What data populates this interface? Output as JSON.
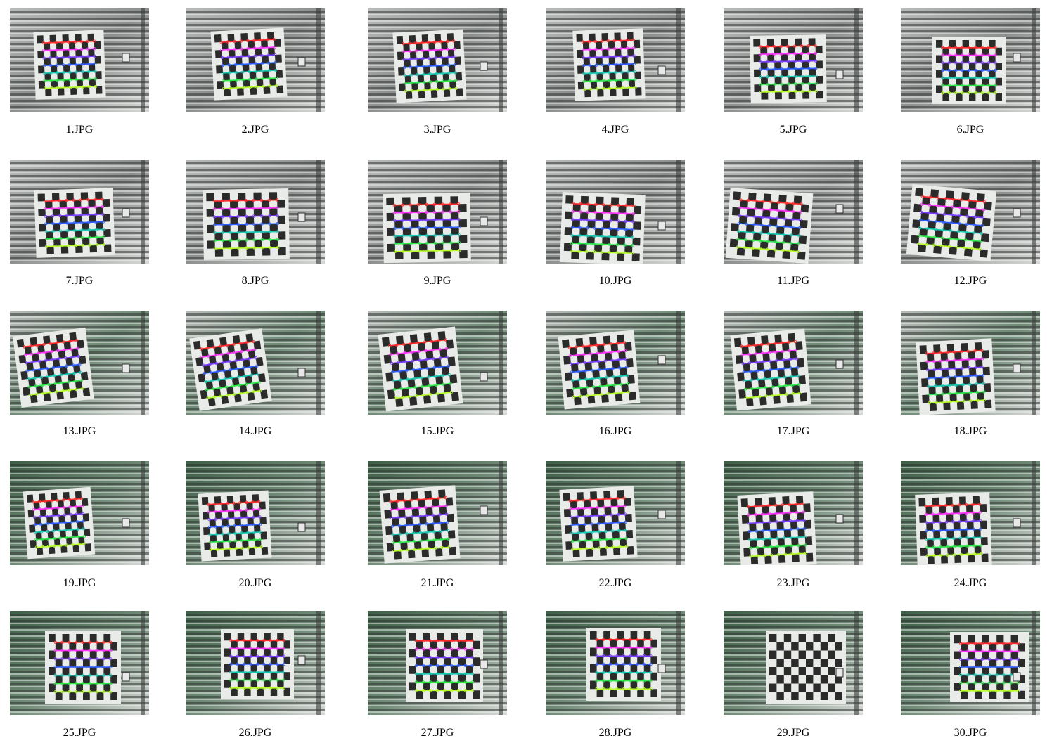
{
  "images": [
    {
      "caption": "1.JPG",
      "detected": true
    },
    {
      "caption": "2.JPG",
      "detected": true
    },
    {
      "caption": "3.JPG",
      "detected": true
    },
    {
      "caption": "4.JPG",
      "detected": true
    },
    {
      "caption": "5.JPG",
      "detected": true
    },
    {
      "caption": "6.JPG",
      "detected": true
    },
    {
      "caption": "7.JPG",
      "detected": true
    },
    {
      "caption": "8.JPG",
      "detected": true
    },
    {
      "caption": "9.JPG",
      "detected": true
    },
    {
      "caption": "10.JPG",
      "detected": true
    },
    {
      "caption": "11.JPG",
      "detected": true
    },
    {
      "caption": "12.JPG",
      "detected": true
    },
    {
      "caption": "13.JPG",
      "detected": true
    },
    {
      "caption": "14.JPG",
      "detected": true
    },
    {
      "caption": "15.JPG",
      "detected": true
    },
    {
      "caption": "16.JPG",
      "detected": true
    },
    {
      "caption": "17.JPG",
      "detected": true
    },
    {
      "caption": "18.JPG",
      "detected": true
    },
    {
      "caption": "19.JPG",
      "detected": true
    },
    {
      "caption": "20.JPG",
      "detected": true
    },
    {
      "caption": "21.JPG",
      "detected": true
    },
    {
      "caption": "22.JPG",
      "detected": true
    },
    {
      "caption": "23.JPG",
      "detected": true
    },
    {
      "caption": "24.JPG",
      "detected": true
    },
    {
      "caption": "25.JPG",
      "detected": true
    },
    {
      "caption": "26.JPG",
      "detected": true
    },
    {
      "caption": "27.JPG",
      "detected": true
    },
    {
      "caption": "28.JPG",
      "detected": true
    },
    {
      "caption": "29.JPG",
      "detected": false
    },
    {
      "caption": "30.JPG",
      "detected": true
    }
  ],
  "colors": {
    "background": "#ffffff",
    "board": "#e9ebe8",
    "square": "#2b2b2b",
    "corner_rows": [
      "#ff2a2a",
      "#ff33ff",
      "#7a3cff",
      "#2a5cff",
      "#19c9b5",
      "#2ee84a",
      "#b6ff2a",
      "#ffb02a",
      "#ff2a2a"
    ]
  }
}
